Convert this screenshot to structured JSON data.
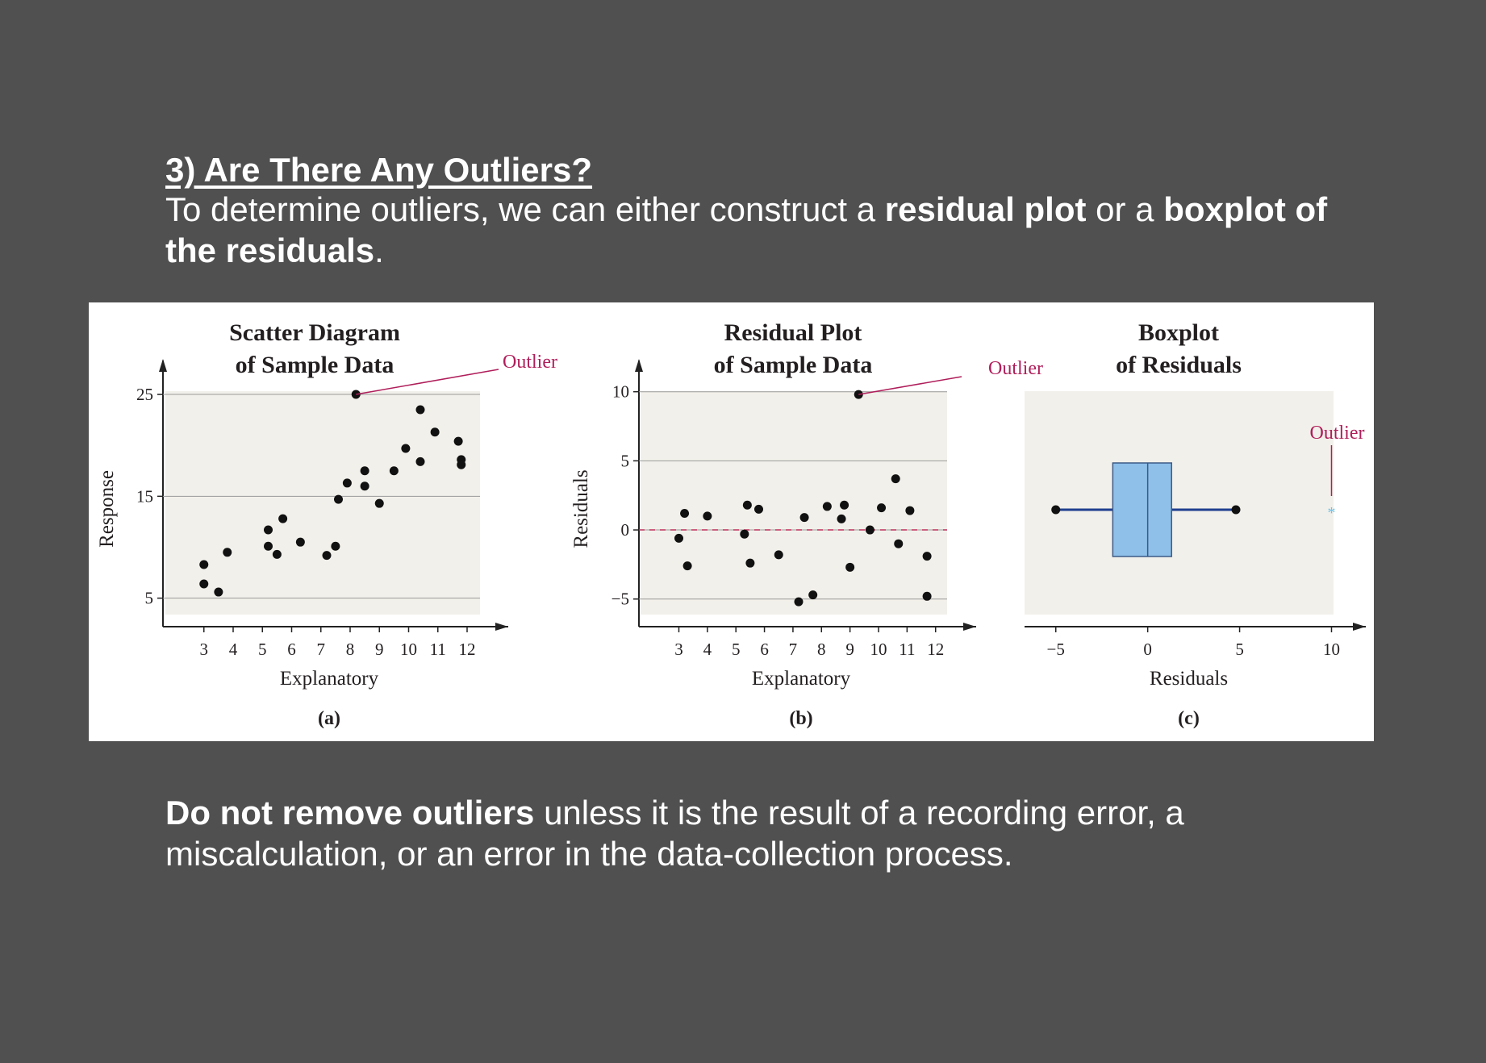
{
  "heading": "3) Are There Any Outliers?",
  "intro": {
    "part1": "To determine outliers, we can either construct a ",
    "bold1": "residual plot",
    "part2": " or a ",
    "bold2": "boxplot of the residuals",
    "part3": "."
  },
  "footer_note": {
    "bold": "Do not remove outliers",
    "rest": " unless it is the result of a recording error, a miscalculation, or an error in the data-collection process."
  },
  "colors": {
    "background": "#505050",
    "plot_area": "#f2f0ea",
    "points": "#111111",
    "outlier_label": "#b01e5a",
    "zero_line": "#c0305e",
    "box_fill": "#8ec0ea",
    "whisker": "#1f3f8f",
    "outlier_marker": "#6cc0e8"
  },
  "chart_data": [
    {
      "type": "scatter",
      "title": "Scatter Diagram of Sample Data",
      "title_lines": [
        "Scatter Diagram",
        "of Sample Data"
      ],
      "xlabel": "Explanatory",
      "ylabel": "Response",
      "xticks": [
        3,
        4,
        5,
        6,
        7,
        8,
        9,
        10,
        11,
        12
      ],
      "yticks": [
        5,
        15,
        25
      ],
      "xlim": [
        1.6,
        12.8
      ],
      "ylim": [
        2.2,
        27.3
      ],
      "grid": "horizontal",
      "panel_label": "(a)",
      "annotation": {
        "text": "Outlier",
        "point": [
          8.2,
          25
        ]
      },
      "points": [
        [
          3.0,
          8.3
        ],
        [
          3.0,
          6.4
        ],
        [
          3.5,
          5.6
        ],
        [
          3.8,
          9.5
        ],
        [
          5.2,
          11.7
        ],
        [
          5.2,
          10.1
        ],
        [
          5.5,
          9.3
        ],
        [
          5.7,
          12.8
        ],
        [
          6.3,
          10.5
        ],
        [
          7.2,
          9.2
        ],
        [
          7.5,
          10.1
        ],
        [
          7.6,
          14.7
        ],
        [
          7.9,
          16.3
        ],
        [
          8.2,
          25.0
        ],
        [
          8.5,
          17.5
        ],
        [
          8.5,
          16.0
        ],
        [
          9.0,
          14.3
        ],
        [
          9.5,
          17.5
        ],
        [
          9.9,
          19.7
        ],
        [
          10.4,
          23.5
        ],
        [
          10.4,
          18.4
        ],
        [
          10.9,
          21.3
        ],
        [
          11.7,
          20.4
        ],
        [
          11.8,
          18.6
        ],
        [
          11.8,
          18.1
        ]
      ]
    },
    {
      "type": "scatter",
      "title": "Residual Plot of Sample Data",
      "title_lines": [
        "Residual Plot",
        "of Sample Data"
      ],
      "xlabel": "Explanatory",
      "ylabel": "Residuals",
      "xticks": [
        3,
        4,
        5,
        6,
        7,
        8,
        9,
        10,
        11,
        12
      ],
      "yticks": [
        -5,
        0,
        5,
        10
      ],
      "ytick_labels": [
        "−5",
        "0",
        "5",
        "10"
      ],
      "xlim": [
        1.6,
        12.8
      ],
      "ylim": [
        -7.0,
        11.5
      ],
      "grid": "horizontal",
      "reference_line": 0,
      "panel_label": "(b)",
      "annotation": {
        "text": "Outlier",
        "point": [
          9.3,
          9.8
        ]
      },
      "points": [
        [
          3.0,
          -0.6
        ],
        [
          3.2,
          1.2
        ],
        [
          3.3,
          -2.6
        ],
        [
          4.0,
          1.0
        ],
        [
          5.3,
          -0.3
        ],
        [
          5.4,
          1.8
        ],
        [
          5.5,
          -2.4
        ],
        [
          5.8,
          1.5
        ],
        [
          6.5,
          -1.8
        ],
        [
          7.2,
          -5.2
        ],
        [
          7.4,
          0.9
        ],
        [
          7.7,
          -4.7
        ],
        [
          8.2,
          1.7
        ],
        [
          8.7,
          0.8
        ],
        [
          8.8,
          1.8
        ],
        [
          9.0,
          -2.7
        ],
        [
          9.3,
          9.8
        ],
        [
          9.7,
          0.0
        ],
        [
          10.1,
          1.6
        ],
        [
          10.6,
          3.7
        ],
        [
          10.7,
          -1.0
        ],
        [
          11.1,
          1.4
        ],
        [
          11.7,
          -1.9
        ],
        [
          11.7,
          -4.8
        ]
      ]
    },
    {
      "type": "box",
      "title": "Boxplot of Residuals",
      "title_lines": [
        "Boxplot",
        "of Residuals"
      ],
      "xlabel": "Residuals",
      "xticks": [
        -5,
        0,
        5,
        10
      ],
      "xtick_labels": [
        "−5",
        "0",
        "5",
        "10"
      ],
      "xlim": [
        -6.7,
        10.9
      ],
      "panel_label": "(c)",
      "box": {
        "min": -5.0,
        "q1": -1.9,
        "median": 0.0,
        "q3": 1.3,
        "max": 4.8
      },
      "outliers": [
        10.0
      ],
      "outlier_symbol": "*",
      "annotation": {
        "text": "Outlier",
        "value": 10.0
      }
    }
  ]
}
